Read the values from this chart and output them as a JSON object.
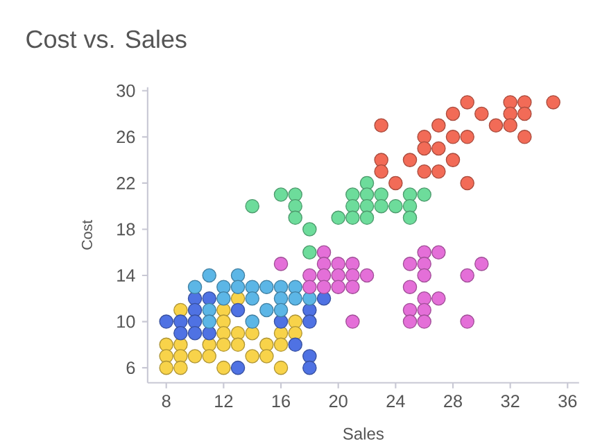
{
  "chart_data": {
    "type": "scatter",
    "title": "Cost vs. Sales",
    "xlabel": "Sales",
    "ylabel": "Cost",
    "xlim": [
      6.7,
      36.8
    ],
    "ylim": [
      4.7,
      30.3
    ],
    "xticks": [
      8,
      12,
      16,
      20,
      24,
      28,
      32,
      36
    ],
    "yticks": [
      6,
      10,
      14,
      18,
      22,
      26,
      30
    ],
    "marker": "circle",
    "series": [
      {
        "color": "#f8d34a",
        "x": [
          8,
          8,
          8,
          9,
          9,
          9,
          9,
          10,
          11,
          11,
          12,
          12,
          12,
          12,
          12,
          13,
          13,
          13,
          14,
          14,
          15,
          15,
          16,
          16,
          16,
          17,
          17
        ],
        "values": [
          8,
          7,
          6,
          11,
          8,
          7,
          6,
          7,
          8,
          7,
          11,
          10,
          9,
          8,
          6,
          12,
          9,
          8,
          9,
          7,
          8,
          7,
          9,
          8,
          6,
          10,
          9
        ]
      },
      {
        "color": "#4f72e3",
        "x": [
          8,
          9,
          9,
          10,
          10,
          10,
          10,
          11,
          11,
          13,
          13,
          16,
          17,
          18,
          18,
          18,
          18,
          19
        ],
        "values": [
          10,
          10,
          9,
          12,
          11,
          10,
          9,
          12,
          9,
          11,
          6,
          10,
          8,
          11,
          10,
          7,
          6,
          12
        ]
      },
      {
        "color": "#5cb6e6",
        "x": [
          10,
          11,
          11,
          11,
          12,
          12,
          13,
          13,
          14,
          14,
          14,
          15,
          15,
          16,
          16,
          16,
          17,
          17,
          18
        ],
        "values": [
          13,
          14,
          11,
          10,
          13,
          12,
          14,
          13,
          13,
          12,
          10,
          13,
          11,
          13,
          12,
          11,
          13,
          12,
          12
        ]
      },
      {
        "color": "#e46fd8",
        "x": [
          16,
          18,
          18,
          19,
          19,
          19,
          19,
          20,
          20,
          20,
          21,
          21,
          21,
          21,
          22,
          25,
          25,
          25,
          25,
          26,
          26,
          26,
          26,
          26,
          26,
          27,
          27,
          29,
          29,
          30
        ],
        "values": [
          15,
          14,
          13,
          16,
          15,
          14,
          13,
          15,
          14,
          13,
          15,
          14,
          13,
          10,
          14,
          15,
          13,
          11,
          10,
          16,
          15,
          14,
          12,
          11,
          10,
          16,
          12,
          14,
          10,
          15
        ]
      },
      {
        "color": "#6ddc9b",
        "x": [
          14,
          16,
          17,
          17,
          17,
          18,
          18,
          20,
          21,
          21,
          21,
          22,
          22,
          22,
          22,
          23,
          23,
          24,
          25,
          25,
          25,
          26
        ],
        "values": [
          20,
          21,
          21,
          20,
          19,
          18,
          16,
          19,
          21,
          20,
          19,
          22,
          21,
          20,
          19,
          21,
          20,
          20,
          21,
          20,
          19,
          21
        ]
      },
      {
        "color": "#f26b57",
        "x": [
          29,
          32,
          33,
          35,
          28,
          30,
          32,
          33,
          23,
          27,
          31,
          32,
          26,
          28,
          29,
          33,
          26,
          27,
          23,
          25,
          28,
          23,
          26,
          27,
          24,
          29
        ],
        "values": [
          29,
          29,
          29,
          29,
          28,
          28,
          28,
          28,
          27,
          27,
          27,
          27,
          26,
          26,
          26,
          26,
          25,
          25,
          24,
          24,
          24,
          23,
          23,
          23,
          22,
          22
        ]
      }
    ]
  }
}
